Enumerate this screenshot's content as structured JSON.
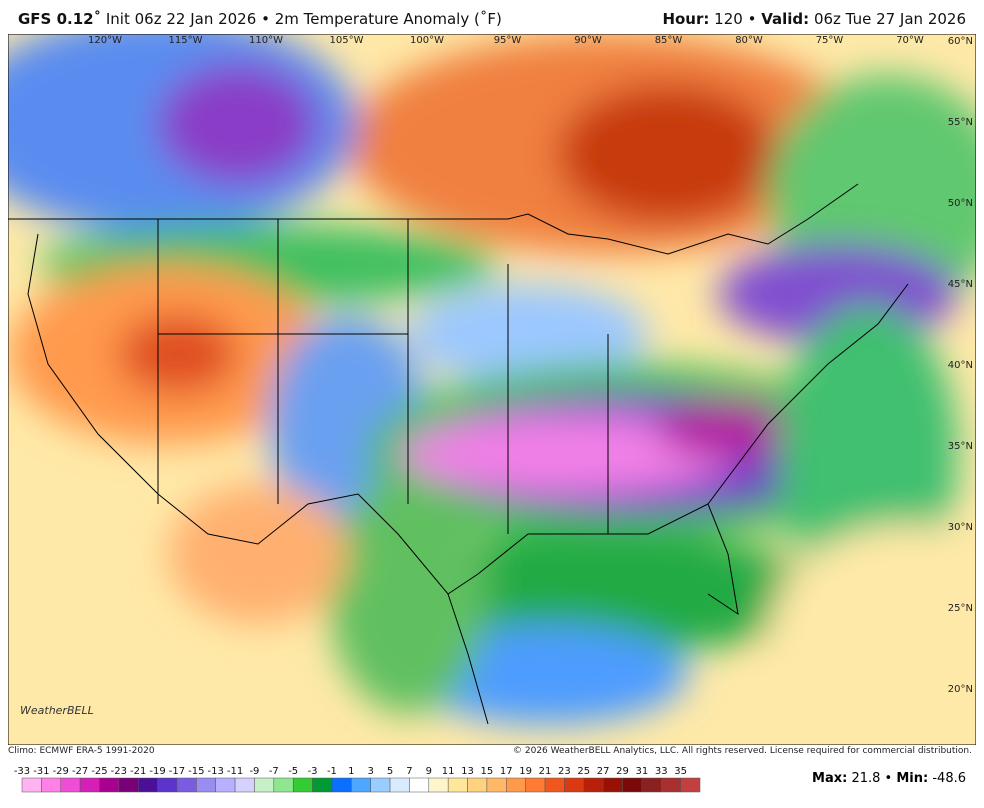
{
  "header": {
    "model": "GFS 0.12˚",
    "init": "Init 06z 22 Jan 2026",
    "separator": "•",
    "field": "2m Temperature Anomaly (˚F)",
    "hour_label": "Hour:",
    "hour": "120",
    "valid_label": "Valid:",
    "valid": "06z Tue 27 Jan 2026"
  },
  "map": {
    "lon_labels": [
      "120°W",
      "115°W",
      "110°W",
      "105°W",
      "100°W",
      "95°W",
      "90°W",
      "85°W",
      "80°W",
      "75°W",
      "70°W"
    ],
    "lat_labels": [
      "60°N",
      "55°N",
      "50°N",
      "45°N",
      "40°N",
      "35°N",
      "30°N",
      "25°N",
      "20°N"
    ],
    "logo": "WeatherBELL"
  },
  "footer": {
    "climo": "Climo: ECMWF ERA-5 1991-2020",
    "copyright": "© 2026 WeatherBELL Analytics, LLC. All rights reserved. License required for commercial distribution."
  },
  "colorbar": {
    "ticks": [
      -33,
      -31,
      -29,
      -27,
      -25,
      -23,
      -21,
      -19,
      -17,
      -15,
      -13,
      -11,
      -9,
      -7,
      -5,
      -3,
      -1,
      1,
      3,
      5,
      7,
      9,
      11,
      13,
      15,
      17,
      19,
      21,
      23,
      25,
      27,
      29,
      31,
      33,
      35
    ],
    "colors": [
      "#ffb3f0",
      "#ff80e6",
      "#f04dd6",
      "#d61fb8",
      "#a8008f",
      "#7a0078",
      "#4b0f99",
      "#5c33cc",
      "#7a5ce0",
      "#9a8cf0",
      "#b8b0ff",
      "#d6d0ff",
      "#c8f0c8",
      "#8ee68e",
      "#33cc33",
      "#009933",
      "#0a6eff",
      "#4da6ff",
      "#99ccff",
      "#d9ecff",
      "#ffffff",
      "#fff5cc",
      "#ffe699",
      "#ffd280",
      "#ffb866",
      "#ff9a4d",
      "#ff7a33",
      "#f0561f",
      "#d93a12",
      "#b8200a",
      "#991005",
      "#7a0a0a",
      "#8a2020",
      "#a83030",
      "#c44040"
    ]
  },
  "stats": {
    "max_label": "Max:",
    "max": "21.8",
    "separator": "•",
    "min_label": "Min:",
    "min": "-48.6"
  }
}
